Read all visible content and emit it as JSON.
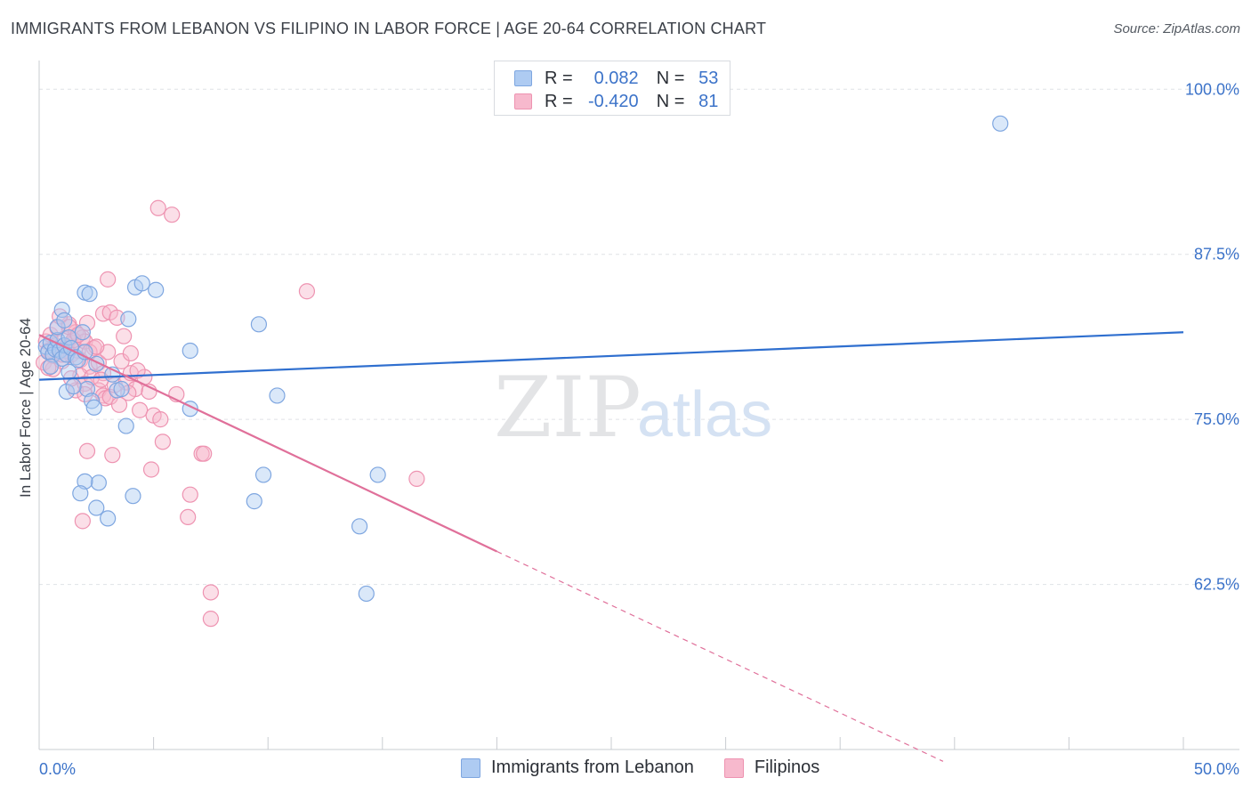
{
  "title": "IMMIGRANTS FROM LEBANON VS FILIPINO IN LABOR FORCE | AGE 20-64 CORRELATION CHART",
  "source": "Source: ZipAtlas.com",
  "watermark": {
    "zip": "ZIP",
    "atlas": "atlas"
  },
  "colors": {
    "blue_fill": "#aecbf2",
    "blue_stroke": "#7ea6e0",
    "blue_line": "#2f6fcf",
    "pink_fill": "#f7b9cd",
    "pink_stroke": "#ee93b1",
    "pink_line": "#e0709a",
    "axis_label": "#3c73c9",
    "grid": "#dfe2e6"
  },
  "legend": {
    "rows": [
      {
        "r_label": "R =",
        "r_value": "0.082",
        "n_label": "N =",
        "n_value": "53"
      },
      {
        "r_label": "R =",
        "r_value": "-0.420",
        "n_label": "N =",
        "n_value": "81"
      }
    ]
  },
  "bottom_legend": {
    "series_a": "Immigrants from Lebanon",
    "series_b": "Filipinos"
  },
  "chart_data": {
    "type": "scatter",
    "title": "IMMIGRANTS FROM LEBANON VS FILIPINO IN LABOR FORCE | AGE 20-64 CORRELATION CHART",
    "xlabel": "",
    "ylabel": "In Labor Force | Age 20-64",
    "xlim": [
      0,
      50
    ],
    "ylim": [
      50.0,
      101.5
    ],
    "x_tick_labels": [
      "0.0%",
      "50.0%"
    ],
    "y_ticks": [
      62.5,
      75.0,
      87.5,
      100.0
    ],
    "y_tick_labels": [
      "62.5%",
      "75.0%",
      "87.5%",
      "100.0%"
    ],
    "grid": true,
    "series": [
      {
        "name": "Immigrants from Lebanon",
        "r": 0.082,
        "n": 53,
        "trend": {
          "x": [
            0,
            50
          ],
          "y": [
            78.0,
            81.6
          ]
        },
        "points": [
          [
            0.3,
            80.5
          ],
          [
            0.4,
            80.1
          ],
          [
            0.5,
            80.8
          ],
          [
            0.6,
            79.9
          ],
          [
            0.7,
            80.3
          ],
          [
            0.8,
            81.0
          ],
          [
            0.9,
            80.2
          ],
          [
            1.0,
            79.6
          ],
          [
            1.1,
            80.6
          ],
          [
            1.2,
            79.9
          ],
          [
            1.3,
            81.2
          ],
          [
            1.4,
            80.4
          ],
          [
            1.6,
            79.7
          ],
          [
            0.8,
            82.0
          ],
          [
            1.0,
            83.3
          ],
          [
            1.1,
            82.5
          ],
          [
            1.7,
            79.5
          ],
          [
            2.0,
            80.1
          ],
          [
            1.9,
            81.6
          ],
          [
            2.1,
            77.3
          ],
          [
            2.3,
            76.4
          ],
          [
            1.2,
            77.1
          ],
          [
            1.5,
            77.5
          ],
          [
            2.5,
            79.2
          ],
          [
            3.2,
            78.4
          ],
          [
            3.4,
            77.2
          ],
          [
            3.6,
            77.3
          ],
          [
            2.4,
            75.9
          ],
          [
            3.8,
            74.5
          ],
          [
            2.6,
            70.2
          ],
          [
            2.0,
            70.3
          ],
          [
            1.8,
            69.4
          ],
          [
            2.5,
            68.3
          ],
          [
            3.0,
            67.5
          ],
          [
            4.1,
            69.2
          ],
          [
            2.0,
            84.6
          ],
          [
            2.2,
            84.5
          ],
          [
            4.2,
            85.0
          ],
          [
            4.5,
            85.3
          ],
          [
            5.1,
            84.8
          ],
          [
            3.9,
            82.6
          ],
          [
            6.6,
            75.8
          ],
          [
            6.6,
            80.2
          ],
          [
            9.6,
            82.2
          ],
          [
            10.4,
            76.8
          ],
          [
            9.8,
            70.8
          ],
          [
            9.4,
            68.8
          ],
          [
            14.8,
            70.8
          ],
          [
            14.0,
            66.9
          ],
          [
            14.3,
            61.8
          ],
          [
            42.0,
            97.4
          ],
          [
            0.5,
            79.0
          ],
          [
            1.3,
            78.6
          ]
        ]
      },
      {
        "name": "Filipinos",
        "r": -0.42,
        "n": 81,
        "trend": {
          "x": [
            0,
            20
          ],
          "y": [
            81.4,
            65.0
          ]
        },
        "trend_dashed": {
          "x": [
            20,
            39.5
          ],
          "y": [
            65.0,
            49.1
          ]
        },
        "points": [
          [
            0.2,
            79.3
          ],
          [
            0.3,
            80.9
          ],
          [
            0.4,
            80.2
          ],
          [
            0.5,
            81.4
          ],
          [
            0.6,
            79.8
          ],
          [
            0.7,
            80.6
          ],
          [
            0.8,
            81.9
          ],
          [
            0.9,
            80.1
          ],
          [
            1.0,
            79.4
          ],
          [
            1.1,
            81.1
          ],
          [
            1.2,
            80.5
          ],
          [
            1.3,
            82.2
          ],
          [
            1.4,
            79.9
          ],
          [
            1.5,
            80.8
          ],
          [
            1.6,
            81.6
          ],
          [
            1.7,
            80.2
          ],
          [
            1.8,
            79.5
          ],
          [
            1.9,
            81.2
          ],
          [
            2.0,
            80.9
          ],
          [
            2.1,
            82.3
          ],
          [
            2.2,
            79.0
          ],
          [
            2.4,
            80.4
          ],
          [
            2.6,
            79.3
          ],
          [
            2.8,
            78.5
          ],
          [
            3.0,
            80.1
          ],
          [
            1.6,
            77.2
          ],
          [
            1.8,
            78.3
          ],
          [
            2.0,
            77.7
          ],
          [
            2.3,
            78.2
          ],
          [
            2.6,
            77.2
          ],
          [
            2.8,
            76.8
          ],
          [
            2.9,
            76.6
          ],
          [
            3.1,
            76.7
          ],
          [
            3.3,
            77.6
          ],
          [
            3.5,
            76.1
          ],
          [
            3.8,
            77.8
          ],
          [
            4.0,
            78.5
          ],
          [
            4.2,
            77.3
          ],
          [
            4.4,
            75.7
          ],
          [
            4.6,
            78.2
          ],
          [
            4.8,
            77.1
          ],
          [
            5.0,
            75.3
          ],
          [
            5.3,
            75.0
          ],
          [
            2.8,
            83.0
          ],
          [
            3.1,
            83.1
          ],
          [
            3.4,
            82.7
          ],
          [
            3.7,
            81.3
          ],
          [
            3.0,
            85.6
          ],
          [
            5.2,
            91.0
          ],
          [
            5.8,
            90.5
          ],
          [
            11.7,
            84.7
          ],
          [
            2.1,
            72.6
          ],
          [
            3.2,
            72.3
          ],
          [
            4.9,
            71.2
          ],
          [
            5.4,
            73.3
          ],
          [
            7.1,
            72.4
          ],
          [
            7.2,
            72.4
          ],
          [
            6.6,
            69.3
          ],
          [
            6.5,
            67.6
          ],
          [
            1.9,
            67.3
          ],
          [
            6.0,
            76.9
          ],
          [
            16.5,
            70.5
          ],
          [
            7.5,
            61.9
          ],
          [
            7.5,
            59.9
          ],
          [
            1.2,
            80.2
          ],
          [
            0.6,
            78.8
          ],
          [
            1.0,
            79.9
          ],
          [
            1.5,
            81.0
          ],
          [
            2.2,
            80.1
          ],
          [
            2.7,
            78.0
          ],
          [
            3.6,
            79.4
          ],
          [
            4.0,
            80.0
          ],
          [
            0.9,
            82.8
          ],
          [
            1.3,
            82.0
          ],
          [
            1.7,
            81.4
          ],
          [
            2.5,
            80.5
          ],
          [
            3.9,
            77.0
          ],
          [
            4.3,
            78.7
          ],
          [
            0.4,
            78.9
          ],
          [
            1.4,
            78.1
          ],
          [
            2.0,
            76.9
          ]
        ]
      }
    ]
  }
}
